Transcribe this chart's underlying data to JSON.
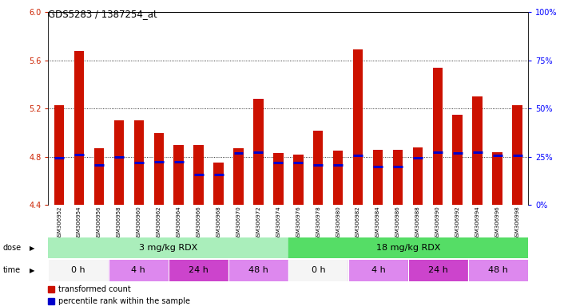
{
  "title": "GDS5283 / 1387254_at",
  "samples": [
    "GSM306952",
    "GSM306954",
    "GSM306956",
    "GSM306958",
    "GSM306960",
    "GSM306962",
    "GSM306964",
    "GSM306966",
    "GSM306968",
    "GSM306970",
    "GSM306972",
    "GSM306974",
    "GSM306976",
    "GSM306978",
    "GSM306980",
    "GSM306982",
    "GSM306984",
    "GSM306986",
    "GSM306988",
    "GSM306990",
    "GSM306992",
    "GSM306994",
    "GSM306996",
    "GSM306998"
  ],
  "bar_values": [
    5.23,
    5.68,
    4.87,
    5.1,
    5.1,
    5.0,
    4.9,
    4.9,
    4.75,
    4.87,
    5.28,
    4.83,
    4.82,
    5.02,
    4.85,
    5.69,
    4.86,
    4.86,
    4.88,
    5.54,
    5.15,
    5.3,
    4.84,
    5.23
  ],
  "blue_values": [
    4.79,
    4.82,
    4.73,
    4.8,
    4.75,
    4.76,
    4.76,
    4.65,
    4.65,
    4.83,
    4.84,
    4.75,
    4.75,
    4.73,
    4.73,
    4.81,
    4.72,
    4.72,
    4.79,
    4.84,
    4.83,
    4.84,
    4.81,
    4.81
  ],
  "ylim": [
    4.4,
    6.0
  ],
  "yticks": [
    4.4,
    4.8,
    5.2,
    5.6,
    6.0
  ],
  "y2tick_vals": [
    0,
    25,
    50,
    75,
    100
  ],
  "y2tick_labels": [
    "0%",
    "25%",
    "50%",
    "75%",
    "100%"
  ],
  "bar_color": "#cc1100",
  "blue_color": "#0000cc",
  "dose_groups": [
    {
      "label": "3 mg/kg RDX",
      "start": 0,
      "end": 12,
      "color": "#aaeebb"
    },
    {
      "label": "18 mg/kg RDX",
      "start": 12,
      "end": 24,
      "color": "#55dd66"
    }
  ],
  "time_groups": [
    {
      "label": "0 h",
      "start": 0,
      "end": 3,
      "color": "#f5f5f5"
    },
    {
      "label": "4 h",
      "start": 3,
      "end": 6,
      "color": "#dd88ee"
    },
    {
      "label": "24 h",
      "start": 6,
      "end": 9,
      "color": "#cc44cc"
    },
    {
      "label": "48 h",
      "start": 9,
      "end": 12,
      "color": "#dd88ee"
    },
    {
      "label": "0 h",
      "start": 12,
      "end": 15,
      "color": "#f5f5f5"
    },
    {
      "label": "4 h",
      "start": 15,
      "end": 18,
      "color": "#dd88ee"
    },
    {
      "label": "24 h",
      "start": 18,
      "end": 21,
      "color": "#cc44cc"
    },
    {
      "label": "48 h",
      "start": 21,
      "end": 24,
      "color": "#dd88ee"
    }
  ],
  "xlbl_bg": "#d8d8d8",
  "legend_items": [
    {
      "label": "transformed count",
      "color": "#cc1100"
    },
    {
      "label": "percentile rank within the sample",
      "color": "#0000cc"
    }
  ]
}
